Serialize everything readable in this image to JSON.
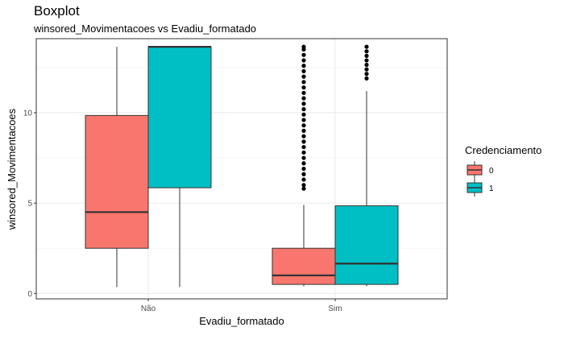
{
  "chart_data": {
    "type": "boxplot",
    "title": "Boxplot",
    "subtitle": "winsored_Movimentacoes vs Evadiu_formatado",
    "xlabel": "Evadiu_formatado",
    "ylabel": "winsored_Movimentacoes",
    "categories": [
      "Não",
      "Sim"
    ],
    "y_ticks": [
      0,
      5,
      10
    ],
    "ylim": [
      -0.3,
      14.1
    ],
    "grid": true,
    "legend": {
      "title": "Credenciamento",
      "position": "right"
    },
    "series": [
      {
        "name": "0",
        "color": "#F8766D",
        "boxes": [
          {
            "category": "Não",
            "min": 0.35,
            "q1": 2.5,
            "median": 4.5,
            "q3": 9.85,
            "max": 13.65,
            "outliers": []
          },
          {
            "category": "Sim",
            "min": 0.4,
            "q1": 0.5,
            "median": 1.0,
            "q3": 2.5,
            "max": 4.9,
            "outliers": [
              5.8,
              6.0,
              6.3,
              6.6,
              6.9,
              7.2,
              7.5,
              7.8,
              8.1,
              8.4,
              8.7,
              9.0,
              9.3,
              9.6,
              9.9,
              10.2,
              10.5,
              10.8,
              11.1,
              11.4,
              11.7,
              12.0,
              12.3,
              12.6,
              12.9,
              13.2,
              13.5,
              13.65
            ]
          }
        ]
      },
      {
        "name": "1",
        "color": "#00BFC4",
        "boxes": [
          {
            "category": "Não",
            "min": 0.35,
            "q1": 5.85,
            "median": 13.65,
            "q3": 13.65,
            "max": 13.65,
            "outliers": []
          },
          {
            "category": "Sim",
            "min": 0.4,
            "q1": 0.5,
            "median": 1.65,
            "q3": 4.85,
            "max": 11.2,
            "outliers": [
              11.9,
              12.15,
              12.4,
              12.65,
              12.9,
              13.15,
              13.4,
              13.65
            ]
          }
        ]
      }
    ]
  }
}
